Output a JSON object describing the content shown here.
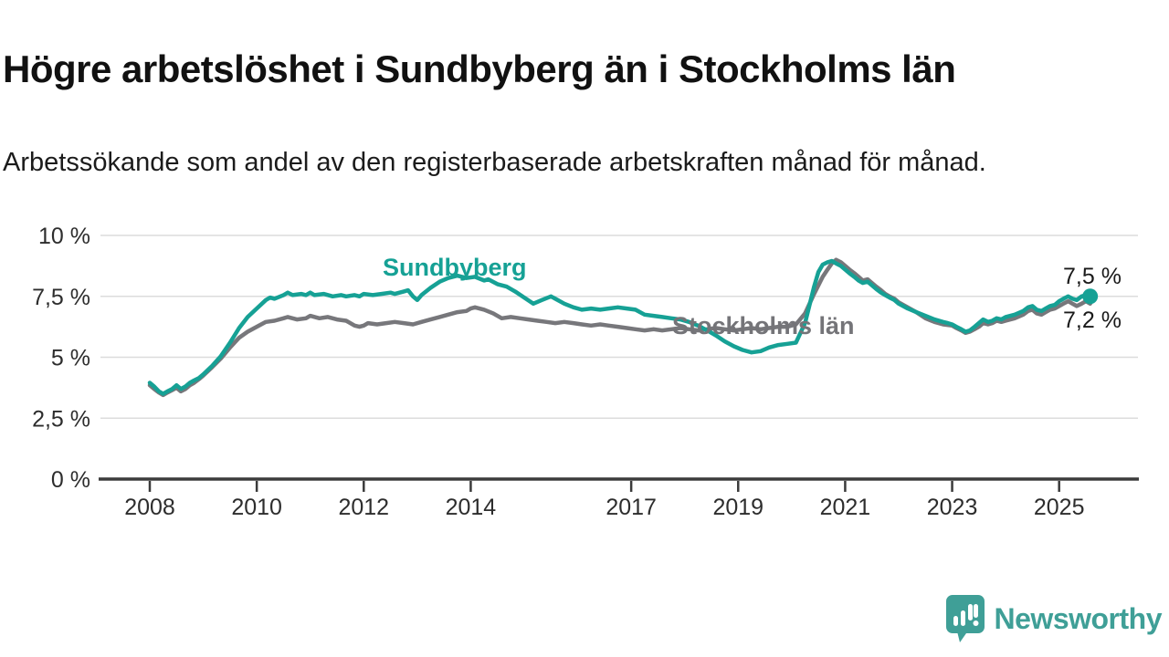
{
  "header": {
    "title": "Högre arbetslöshet i Sundbyberg än i Stockholms län",
    "subtitle": "Arbetssökande som andel av den registerbaserade arbetskraften månad för månad."
  },
  "colors": {
    "accent_teal": "#16a195",
    "series_gray": "#77777b",
    "axis": "#3b3b3b",
    "gridline": "#dcdcdc",
    "tick_text": "#2d2d2d",
    "logo_teal": "#3f9f97",
    "background": "#ffffff"
  },
  "chart_data": {
    "type": "line",
    "title": "Högre arbetslöshet i Sundbyberg än i Stockholms län",
    "subtitle": "Arbetssökande som andel av den registerbaserade arbetskraften månad för månad.",
    "unit": "%",
    "grid": "horizontal-only",
    "legend_position": "inline-labels-on-chart",
    "x_range": [
      2007.05,
      2026.5
    ],
    "y_range": [
      0,
      10
    ],
    "x_ticks": [
      2008,
      2010,
      2012,
      2014,
      2017,
      2019,
      2021,
      2023,
      2025
    ],
    "y_ticks": [
      {
        "value": 0,
        "label": "0 %"
      },
      {
        "value": 2.5,
        "label": "2,5 %"
      },
      {
        "value": 5,
        "label": "5 %"
      },
      {
        "value": 7.5,
        "label": "7,5 %"
      },
      {
        "value": 10,
        "label": "10 %"
      }
    ],
    "series": [
      {
        "name": "Sundbyberg",
        "color": "#16a195",
        "latest_label": "7,5 %",
        "latest_value": 7.5,
        "end_dot": true,
        "points": [
          [
            2008.0,
            3.95
          ],
          [
            2008.08,
            3.8
          ],
          [
            2008.17,
            3.6
          ],
          [
            2008.25,
            3.5
          ],
          [
            2008.33,
            3.6
          ],
          [
            2008.42,
            3.7
          ],
          [
            2008.5,
            3.85
          ],
          [
            2008.58,
            3.7
          ],
          [
            2008.67,
            3.8
          ],
          [
            2008.75,
            3.95
          ],
          [
            2008.83,
            4.05
          ],
          [
            2008.92,
            4.15
          ],
          [
            2009.0,
            4.3
          ],
          [
            2009.17,
            4.65
          ],
          [
            2009.33,
            5.05
          ],
          [
            2009.5,
            5.6
          ],
          [
            2009.67,
            6.2
          ],
          [
            2009.83,
            6.65
          ],
          [
            2010.0,
            7.0
          ],
          [
            2010.17,
            7.35
          ],
          [
            2010.25,
            7.45
          ],
          [
            2010.33,
            7.4
          ],
          [
            2010.5,
            7.55
          ],
          [
            2010.58,
            7.65
          ],
          [
            2010.67,
            7.55
          ],
          [
            2010.83,
            7.6
          ],
          [
            2010.92,
            7.55
          ],
          [
            2011.0,
            7.65
          ],
          [
            2011.08,
            7.55
          ],
          [
            2011.25,
            7.6
          ],
          [
            2011.42,
            7.5
          ],
          [
            2011.58,
            7.55
          ],
          [
            2011.67,
            7.5
          ],
          [
            2011.83,
            7.55
          ],
          [
            2011.92,
            7.5
          ],
          [
            2012.0,
            7.6
          ],
          [
            2012.17,
            7.55
          ],
          [
            2012.33,
            7.6
          ],
          [
            2012.5,
            7.65
          ],
          [
            2012.58,
            7.6
          ],
          [
            2012.75,
            7.7
          ],
          [
            2012.83,
            7.75
          ],
          [
            2012.92,
            7.5
          ],
          [
            2013.0,
            7.35
          ],
          [
            2013.08,
            7.55
          ],
          [
            2013.25,
            7.85
          ],
          [
            2013.42,
            8.1
          ],
          [
            2013.58,
            8.25
          ],
          [
            2013.75,
            8.35
          ],
          [
            2013.92,
            8.25
          ],
          [
            2014.08,
            8.3
          ],
          [
            2014.25,
            8.15
          ],
          [
            2014.33,
            8.2
          ],
          [
            2014.5,
            8.0
          ],
          [
            2014.67,
            7.9
          ],
          [
            2014.83,
            7.7
          ],
          [
            2015.0,
            7.45
          ],
          [
            2015.17,
            7.2
          ],
          [
            2015.33,
            7.35
          ],
          [
            2015.5,
            7.5
          ],
          [
            2015.58,
            7.4
          ],
          [
            2015.75,
            7.2
          ],
          [
            2015.92,
            7.05
          ],
          [
            2016.08,
            6.95
          ],
          [
            2016.25,
            7.0
          ],
          [
            2016.42,
            6.95
          ],
          [
            2016.58,
            7.0
          ],
          [
            2016.75,
            7.05
          ],
          [
            2016.92,
            7.0
          ],
          [
            2017.08,
            6.95
          ],
          [
            2017.25,
            6.75
          ],
          [
            2017.42,
            6.7
          ],
          [
            2017.58,
            6.65
          ],
          [
            2017.75,
            6.6
          ],
          [
            2017.92,
            6.55
          ],
          [
            2018.08,
            6.45
          ],
          [
            2018.25,
            6.3
          ],
          [
            2018.42,
            6.1
          ],
          [
            2018.58,
            5.9
          ],
          [
            2018.75,
            5.65
          ],
          [
            2018.92,
            5.45
          ],
          [
            2019.08,
            5.3
          ],
          [
            2019.25,
            5.2
          ],
          [
            2019.42,
            5.25
          ],
          [
            2019.58,
            5.4
          ],
          [
            2019.75,
            5.5
          ],
          [
            2019.92,
            5.55
          ],
          [
            2020.08,
            5.6
          ],
          [
            2020.25,
            6.4
          ],
          [
            2020.42,
            7.9
          ],
          [
            2020.5,
            8.5
          ],
          [
            2020.58,
            8.8
          ],
          [
            2020.67,
            8.9
          ],
          [
            2020.75,
            8.95
          ],
          [
            2020.83,
            8.85
          ],
          [
            2020.92,
            8.75
          ],
          [
            2021.0,
            8.6
          ],
          [
            2021.08,
            8.45
          ],
          [
            2021.17,
            8.3
          ],
          [
            2021.25,
            8.15
          ],
          [
            2021.33,
            8.05
          ],
          [
            2021.42,
            8.1
          ],
          [
            2021.5,
            7.95
          ],
          [
            2021.58,
            7.8
          ],
          [
            2021.67,
            7.65
          ],
          [
            2021.75,
            7.55
          ],
          [
            2021.83,
            7.45
          ],
          [
            2021.92,
            7.35
          ],
          [
            2022.0,
            7.2
          ],
          [
            2022.17,
            7.0
          ],
          [
            2022.33,
            6.85
          ],
          [
            2022.5,
            6.7
          ],
          [
            2022.67,
            6.55
          ],
          [
            2022.83,
            6.45
          ],
          [
            2022.92,
            6.4
          ],
          [
            2023.0,
            6.35
          ],
          [
            2023.08,
            6.25
          ],
          [
            2023.17,
            6.15
          ],
          [
            2023.25,
            6.05
          ],
          [
            2023.33,
            6.1
          ],
          [
            2023.42,
            6.25
          ],
          [
            2023.5,
            6.4
          ],
          [
            2023.58,
            6.55
          ],
          [
            2023.67,
            6.45
          ],
          [
            2023.75,
            6.5
          ],
          [
            2023.83,
            6.6
          ],
          [
            2023.92,
            6.55
          ],
          [
            2024.0,
            6.65
          ],
          [
            2024.17,
            6.75
          ],
          [
            2024.33,
            6.9
          ],
          [
            2024.42,
            7.05
          ],
          [
            2024.5,
            7.1
          ],
          [
            2024.58,
            6.95
          ],
          [
            2024.67,
            6.9
          ],
          [
            2024.75,
            7.0
          ],
          [
            2024.83,
            7.1
          ],
          [
            2024.92,
            7.15
          ],
          [
            2025.0,
            7.3
          ],
          [
            2025.08,
            7.4
          ],
          [
            2025.17,
            7.5
          ],
          [
            2025.25,
            7.4
          ],
          [
            2025.33,
            7.35
          ],
          [
            2025.42,
            7.5
          ],
          [
            2025.5,
            7.55
          ],
          [
            2025.58,
            7.5
          ]
        ]
      },
      {
        "name": "Stockholms län",
        "color": "#77777b",
        "latest_label": "7,2 %",
        "latest_value": 7.2,
        "end_dot": false,
        "points": [
          [
            2008.0,
            3.85
          ],
          [
            2008.08,
            3.7
          ],
          [
            2008.17,
            3.55
          ],
          [
            2008.25,
            3.45
          ],
          [
            2008.33,
            3.55
          ],
          [
            2008.42,
            3.65
          ],
          [
            2008.5,
            3.75
          ],
          [
            2008.58,
            3.6
          ],
          [
            2008.67,
            3.7
          ],
          [
            2008.75,
            3.85
          ],
          [
            2008.83,
            3.95
          ],
          [
            2008.92,
            4.1
          ],
          [
            2009.0,
            4.25
          ],
          [
            2009.17,
            4.6
          ],
          [
            2009.33,
            4.95
          ],
          [
            2009.5,
            5.4
          ],
          [
            2009.67,
            5.8
          ],
          [
            2009.83,
            6.05
          ],
          [
            2010.0,
            6.25
          ],
          [
            2010.17,
            6.45
          ],
          [
            2010.33,
            6.5
          ],
          [
            2010.5,
            6.6
          ],
          [
            2010.58,
            6.65
          ],
          [
            2010.75,
            6.55
          ],
          [
            2010.92,
            6.6
          ],
          [
            2011.0,
            6.7
          ],
          [
            2011.17,
            6.6
          ],
          [
            2011.33,
            6.65
          ],
          [
            2011.5,
            6.55
          ],
          [
            2011.67,
            6.5
          ],
          [
            2011.83,
            6.3
          ],
          [
            2011.92,
            6.25
          ],
          [
            2012.0,
            6.3
          ],
          [
            2012.08,
            6.4
          ],
          [
            2012.25,
            6.35
          ],
          [
            2012.42,
            6.4
          ],
          [
            2012.58,
            6.45
          ],
          [
            2012.75,
            6.4
          ],
          [
            2012.92,
            6.35
          ],
          [
            2013.08,
            6.45
          ],
          [
            2013.25,
            6.55
          ],
          [
            2013.42,
            6.65
          ],
          [
            2013.58,
            6.75
          ],
          [
            2013.75,
            6.85
          ],
          [
            2013.92,
            6.9
          ],
          [
            2014.0,
            7.0
          ],
          [
            2014.08,
            7.05
          ],
          [
            2014.25,
            6.95
          ],
          [
            2014.42,
            6.8
          ],
          [
            2014.58,
            6.6
          ],
          [
            2014.75,
            6.65
          ],
          [
            2014.92,
            6.6
          ],
          [
            2015.08,
            6.55
          ],
          [
            2015.25,
            6.5
          ],
          [
            2015.42,
            6.45
          ],
          [
            2015.58,
            6.4
          ],
          [
            2015.75,
            6.45
          ],
          [
            2015.92,
            6.4
          ],
          [
            2016.08,
            6.35
          ],
          [
            2016.25,
            6.3
          ],
          [
            2016.42,
            6.35
          ],
          [
            2016.58,
            6.3
          ],
          [
            2016.75,
            6.25
          ],
          [
            2016.92,
            6.2
          ],
          [
            2017.08,
            6.15
          ],
          [
            2017.25,
            6.1
          ],
          [
            2017.42,
            6.15
          ],
          [
            2017.58,
            6.1
          ],
          [
            2017.75,
            6.15
          ],
          [
            2017.92,
            6.2
          ],
          [
            2018.08,
            6.15
          ],
          [
            2018.25,
            6.1
          ],
          [
            2018.42,
            6.15
          ],
          [
            2018.58,
            6.2
          ],
          [
            2018.75,
            6.15
          ],
          [
            2018.92,
            6.1
          ],
          [
            2019.08,
            6.15
          ],
          [
            2019.25,
            6.2
          ],
          [
            2019.42,
            6.15
          ],
          [
            2019.58,
            6.2
          ],
          [
            2019.75,
            6.25
          ],
          [
            2019.92,
            6.25
          ],
          [
            2020.08,
            6.35
          ],
          [
            2020.25,
            6.8
          ],
          [
            2020.42,
            7.6
          ],
          [
            2020.58,
            8.3
          ],
          [
            2020.67,
            8.6
          ],
          [
            2020.75,
            8.85
          ],
          [
            2020.83,
            9.0
          ],
          [
            2020.92,
            8.9
          ],
          [
            2021.0,
            8.75
          ],
          [
            2021.08,
            8.6
          ],
          [
            2021.17,
            8.45
          ],
          [
            2021.25,
            8.3
          ],
          [
            2021.33,
            8.15
          ],
          [
            2021.42,
            8.2
          ],
          [
            2021.5,
            8.05
          ],
          [
            2021.58,
            7.9
          ],
          [
            2021.67,
            7.75
          ],
          [
            2021.75,
            7.6
          ],
          [
            2021.83,
            7.5
          ],
          [
            2021.92,
            7.4
          ],
          [
            2022.0,
            7.25
          ],
          [
            2022.17,
            7.05
          ],
          [
            2022.33,
            6.85
          ],
          [
            2022.5,
            6.6
          ],
          [
            2022.67,
            6.45
          ],
          [
            2022.83,
            6.35
          ],
          [
            2023.0,
            6.3
          ],
          [
            2023.08,
            6.2
          ],
          [
            2023.17,
            6.1
          ],
          [
            2023.25,
            6.0
          ],
          [
            2023.33,
            6.05
          ],
          [
            2023.42,
            6.15
          ],
          [
            2023.5,
            6.25
          ],
          [
            2023.58,
            6.4
          ],
          [
            2023.67,
            6.35
          ],
          [
            2023.75,
            6.4
          ],
          [
            2023.83,
            6.5
          ],
          [
            2023.92,
            6.45
          ],
          [
            2024.0,
            6.5
          ],
          [
            2024.17,
            6.6
          ],
          [
            2024.33,
            6.75
          ],
          [
            2024.42,
            6.9
          ],
          [
            2024.5,
            6.95
          ],
          [
            2024.58,
            6.8
          ],
          [
            2024.67,
            6.75
          ],
          [
            2024.75,
            6.85
          ],
          [
            2024.83,
            6.95
          ],
          [
            2024.92,
            7.0
          ],
          [
            2025.0,
            7.1
          ],
          [
            2025.08,
            7.2
          ],
          [
            2025.17,
            7.3
          ],
          [
            2025.25,
            7.2
          ],
          [
            2025.33,
            7.1
          ],
          [
            2025.42,
            7.2
          ],
          [
            2025.5,
            7.3
          ],
          [
            2025.58,
            7.2
          ]
        ]
      }
    ]
  },
  "footer": {
    "brand": "Newsworthy"
  }
}
